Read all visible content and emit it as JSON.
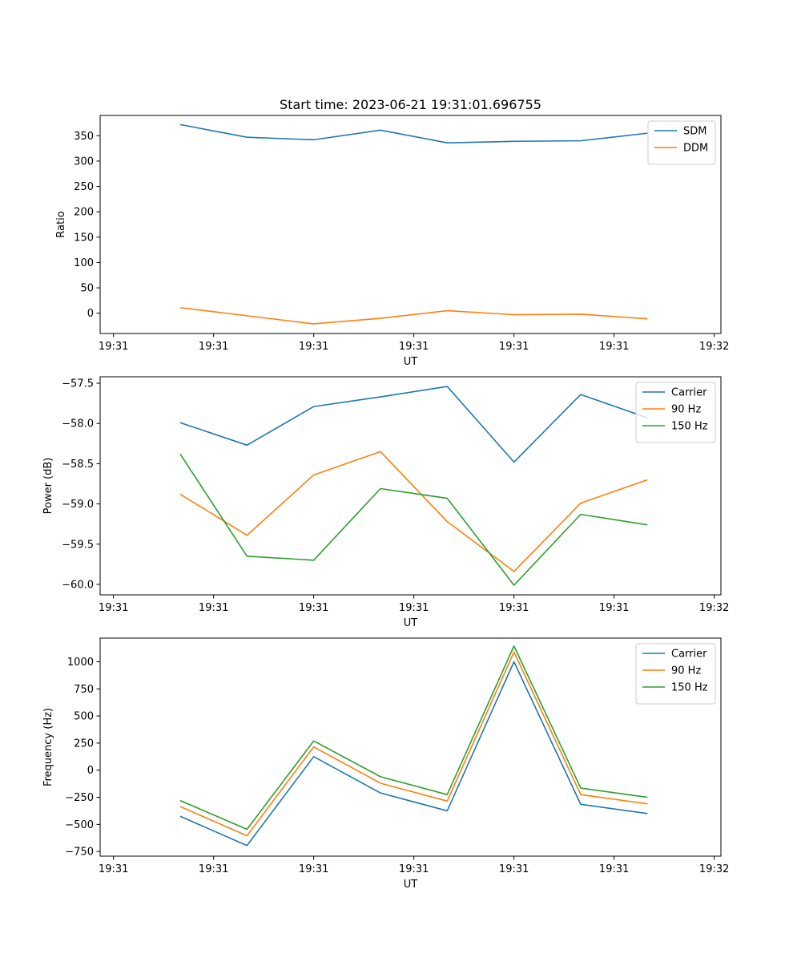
{
  "figure": {
    "title": "Start time: 2023-06-21 19:31:01.696755"
  },
  "chart_data": [
    {
      "type": "line",
      "title": "Start time: 2023-06-21 19:31:01.696755",
      "xlabel": "UT",
      "ylabel": "Ratio",
      "x_tick_labels": [
        "19:31",
        "19:31",
        "19:31",
        "19:31",
        "19:31",
        "19:31",
        "19:32"
      ],
      "x": [
        1,
        2,
        3,
        4,
        5,
        6,
        7,
        8
      ],
      "xlim": [
        -0.2,
        9.1
      ],
      "x_ticks": [
        0,
        1.5,
        3,
        4.5,
        6,
        7.5,
        9
      ],
      "ylim": [
        -40,
        390
      ],
      "y_ticks": [
        0,
        50,
        100,
        150,
        200,
        250,
        300,
        350
      ],
      "y_tick_labels": [
        "0",
        "50",
        "100",
        "150",
        "200",
        "250",
        "300",
        "350"
      ],
      "legend": "top-right",
      "series": [
        {
          "name": "SDM",
          "color": "#1f77b4",
          "values": [
            372,
            347,
            342,
            361,
            336,
            339,
            340,
            355
          ]
        },
        {
          "name": "DDM",
          "color": "#ff7f0e",
          "values": [
            11,
            -5,
            -21,
            -10,
            5,
            -3,
            -2,
            -11
          ]
        }
      ]
    },
    {
      "type": "line",
      "title": "",
      "xlabel": "UT",
      "ylabel": "Power (dB)",
      "x_tick_labels": [
        "19:31",
        "19:31",
        "19:31",
        "19:31",
        "19:31",
        "19:31",
        "19:32"
      ],
      "x": [
        1,
        2,
        3,
        4,
        5,
        6,
        7,
        8
      ],
      "xlim": [
        -0.2,
        9.1
      ],
      "x_ticks": [
        0,
        1.5,
        3,
        4.5,
        6,
        7.5,
        9
      ],
      "ylim": [
        -60.13,
        -57.42
      ],
      "y_ticks": [
        -60.0,
        -59.5,
        -59.0,
        -58.5,
        -58.0,
        -57.5
      ],
      "y_tick_labels": [
        "−60.0",
        "−59.5",
        "−59.0",
        "−58.5",
        "−58.0",
        "−57.5"
      ],
      "legend": "top-right",
      "series": [
        {
          "name": "Carrier",
          "color": "#1f77b4",
          "values": [
            -57.99,
            -58.27,
            -57.79,
            -57.67,
            -57.54,
            -58.48,
            -57.64,
            -57.93
          ]
        },
        {
          "name": "90 Hz",
          "color": "#ff7f0e",
          "values": [
            -58.88,
            -59.39,
            -58.64,
            -58.35,
            -59.22,
            -59.84,
            -58.99,
            -58.7
          ]
        },
        {
          "name": "150 Hz",
          "color": "#2ca02c",
          "values": [
            -58.38,
            -59.65,
            -59.7,
            -58.81,
            -58.93,
            -60.01,
            -59.13,
            -59.26
          ]
        }
      ]
    },
    {
      "type": "line",
      "title": "",
      "xlabel": "UT",
      "ylabel": "Frequency (Hz)",
      "x_tick_labels": [
        "19:31",
        "19:31",
        "19:31",
        "19:31",
        "19:31",
        "19:31",
        "19:32"
      ],
      "x": [
        1,
        2,
        3,
        4,
        5,
        6,
        7,
        8
      ],
      "xlim": [
        -0.2,
        9.1
      ],
      "x_ticks": [
        0,
        1.5,
        3,
        4.5,
        6,
        7.5,
        9
      ],
      "ylim": [
        -793,
        1218
      ],
      "y_ticks": [
        -750,
        -500,
        -250,
        0,
        250,
        500,
        750,
        1000
      ],
      "y_tick_labels": [
        "−750",
        "−500",
        "−250",
        "0",
        "250",
        "500",
        "750",
        "1000"
      ],
      "legend": "top-right",
      "series": [
        {
          "name": "Carrier",
          "color": "#1f77b4",
          "values": [
            -425,
            -695,
            125,
            -210,
            -375,
            1000,
            -315,
            -400
          ]
        },
        {
          "name": "90 Hz",
          "color": "#ff7f0e",
          "values": [
            -335,
            -605,
            215,
            -120,
            -285,
            1090,
            -225,
            -310
          ]
        },
        {
          "name": "150 Hz",
          "color": "#2ca02c",
          "values": [
            -280,
            -545,
            270,
            -60,
            -225,
            1145,
            -165,
            -250
          ]
        }
      ]
    }
  ]
}
